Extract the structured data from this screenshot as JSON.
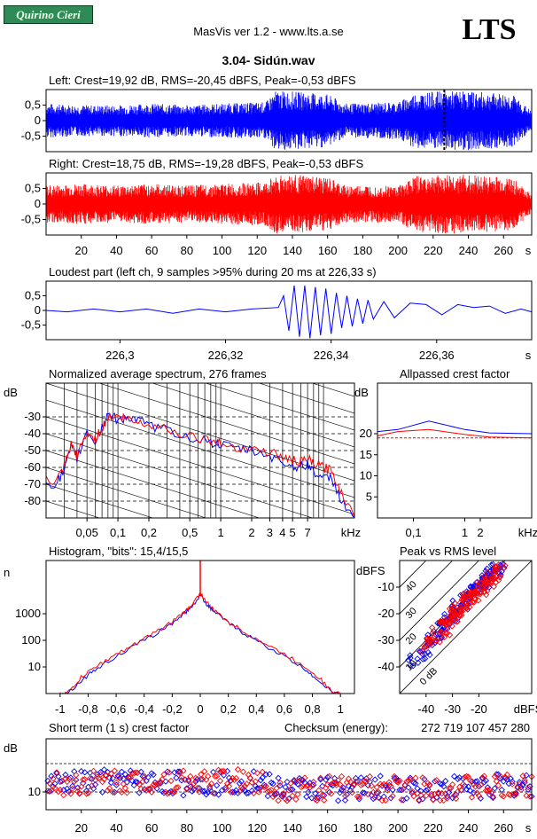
{
  "header": {
    "badge": "Quirino Cieri",
    "software": "MasVis ver 1.2 - www.lts.a.se",
    "brand": "LTS",
    "track": "3.04- Sidún.wav"
  },
  "colors": {
    "left": "#0000ff",
    "right": "#ff0000",
    "grid": "#000000"
  },
  "chart_data": [
    {
      "id": "left",
      "type": "line",
      "title": "Left: Crest=19,92 dB, RMS=-20,45 dBFS, Peak=-0,53 dBFS",
      "xlim": [
        0,
        276
      ],
      "ylim": [
        -1,
        1
      ],
      "yticks": [
        0.5,
        0,
        -0.5
      ],
      "ytick_labels": [
        "0,5",
        "0",
        "-0,5"
      ],
      "marker_x": 226.33,
      "series": [
        {
          "color": "#0000ff",
          "envelope": [
            [
              0,
              0.55
            ],
            [
              20,
              0.5
            ],
            [
              40,
              0.5
            ],
            [
              60,
              0.55
            ],
            [
              80,
              0.5
            ],
            [
              100,
              0.55
            ],
            [
              125,
              0.6
            ],
            [
              130,
              0.95
            ],
            [
              140,
              0.95
            ],
            [
              160,
              0.85
            ],
            [
              170,
              0.55
            ],
            [
              200,
              0.6
            ],
            [
              210,
              0.9
            ],
            [
              226,
              0.95
            ],
            [
              240,
              0.95
            ],
            [
              265,
              0.85
            ],
            [
              276,
              0.3
            ]
          ]
        }
      ]
    },
    {
      "id": "right",
      "type": "line",
      "title": "Right: Crest=18,75 dB, RMS=-19,28 dBFS, Peak=-0,53 dBFS",
      "xlim": [
        0,
        276
      ],
      "ylim": [
        -1,
        1
      ],
      "yticks": [
        0.5,
        0,
        -0.5
      ],
      "ytick_labels": [
        "0,5",
        "0",
        "-0,5"
      ],
      "xticks": [
        20,
        40,
        60,
        80,
        100,
        120,
        140,
        160,
        180,
        200,
        220,
        240,
        260
      ],
      "xtick_labels": [
        "20",
        "40",
        "60",
        "80",
        "100",
        "120",
        "140",
        "160",
        "180",
        "200",
        "220",
        "240",
        "260"
      ],
      "xunit": "s",
      "series": [
        {
          "color": "#ff0000",
          "envelope": [
            [
              0,
              0.6
            ],
            [
              20,
              0.65
            ],
            [
              40,
              0.6
            ],
            [
              60,
              0.65
            ],
            [
              80,
              0.6
            ],
            [
              100,
              0.65
            ],
            [
              125,
              0.7
            ],
            [
              130,
              0.95
            ],
            [
              140,
              0.95
            ],
            [
              160,
              0.85
            ],
            [
              170,
              0.6
            ],
            [
              200,
              0.6
            ],
            [
              210,
              0.9
            ],
            [
              226,
              0.95
            ],
            [
              240,
              0.95
            ],
            [
              265,
              0.85
            ],
            [
              276,
              0.3
            ]
          ]
        }
      ]
    },
    {
      "id": "loudest",
      "type": "line",
      "title": "Loudest part (left  ch, 9 samples >95% during 20 ms at 226,33 s)",
      "xlim": [
        226.286,
        226.378
      ],
      "ylim": [
        -1,
        1
      ],
      "yticks": [
        0.5,
        0,
        -0.5
      ],
      "ytick_labels": [
        "0,5",
        "0",
        "-0,5"
      ],
      "xticks": [
        226.3,
        226.32,
        226.34,
        226.36
      ],
      "xtick_labels": [
        "226,3",
        "226,32",
        "226,34",
        "226,36"
      ],
      "xunit": "s",
      "series": [
        {
          "color": "#0000ff",
          "x": [
            226.286,
            226.29,
            226.295,
            226.3,
            226.305,
            226.31,
            226.315,
            226.32,
            226.325,
            226.33,
            226.331,
            226.332,
            226.333,
            226.334,
            226.335,
            226.336,
            226.337,
            226.338,
            226.339,
            226.34,
            226.341,
            226.342,
            226.343,
            226.344,
            226.345,
            226.346,
            226.347,
            226.348,
            226.35,
            226.352,
            226.355,
            226.358,
            226.361,
            226.364,
            226.367,
            226.37,
            226.373,
            226.376,
            226.378
          ],
          "y": [
            0,
            -0.05,
            0.05,
            -0.05,
            0.05,
            -0.1,
            0.05,
            -0.05,
            0.05,
            0.1,
            0.5,
            -0.7,
            0.85,
            -0.9,
            0.85,
            -0.95,
            0.8,
            -0.85,
            0.75,
            -0.8,
            0.6,
            -0.6,
            0.5,
            -0.55,
            0.4,
            -0.45,
            0.35,
            -0.3,
            0.3,
            -0.25,
            0.25,
            0.2,
            -0.15,
            0.2,
            0.1,
            0.15,
            -0.1,
            0.05,
            -0.05
          ]
        }
      ]
    },
    {
      "id": "spectrum",
      "type": "line",
      "title": "Normalized average spectrum, 276 frames",
      "ylabel": "dB",
      "xscale": "log",
      "xlim": [
        0.02,
        20
      ],
      "ylim": [
        -90,
        -10
      ],
      "yticks": [
        -30,
        -40,
        -50,
        -60,
        -70,
        -80
      ],
      "ytick_labels": [
        "-30",
        "-40",
        "-50",
        "-60",
        "-70",
        "-80"
      ],
      "xticks": [
        0.05,
        0.1,
        0.2,
        0.5,
        1,
        2,
        3,
        4,
        5,
        7
      ],
      "xtick_labels": [
        "0,05",
        "0,1",
        "0,2",
        "0,5",
        "1",
        "2",
        "3",
        "4",
        "5",
        "7"
      ],
      "xunit": "kHz",
      "series": [
        {
          "color": "#0000ff",
          "x": [
            0.02,
            0.025,
            0.03,
            0.035,
            0.04,
            0.05,
            0.06,
            0.07,
            0.08,
            0.1,
            0.12,
            0.15,
            0.2,
            0.3,
            0.5,
            0.8,
            1,
            1.5,
            2,
            3,
            4,
            5,
            6,
            7,
            8,
            10,
            12,
            15,
            20
          ],
          "y": [
            -69,
            -70,
            -62,
            -48,
            -55,
            -38,
            -45,
            -36,
            -28,
            -32,
            -30,
            -32,
            -35,
            -38,
            -42,
            -45,
            -47,
            -49,
            -50,
            -53,
            -57,
            -59,
            -60,
            -58,
            -62,
            -67,
            -66,
            -80,
            -90
          ]
        },
        {
          "color": "#ff0000",
          "x": [
            0.02,
            0.025,
            0.03,
            0.035,
            0.04,
            0.05,
            0.06,
            0.07,
            0.08,
            0.1,
            0.12,
            0.15,
            0.2,
            0.3,
            0.5,
            0.8,
            1,
            1.5,
            2,
            3,
            4,
            5,
            6,
            7,
            8,
            10,
            12,
            15,
            20
          ],
          "y": [
            -68,
            -69,
            -60,
            -47,
            -53,
            -40,
            -43,
            -37,
            -30,
            -30,
            -31,
            -33,
            -34,
            -37,
            -41,
            -44,
            -46,
            -48,
            -49,
            -51,
            -54,
            -56,
            -57,
            -55,
            -58,
            -60,
            -62,
            -75,
            -90
          ]
        }
      ]
    },
    {
      "id": "allpassed",
      "type": "line",
      "title": "Allpassed crest factor",
      "ylabel": "dB",
      "xscale": "log",
      "xlim": [
        0.02,
        20
      ],
      "ylim": [
        0,
        32
      ],
      "yticks": [
        20,
        15,
        10,
        5
      ],
      "ytick_labels": [
        "20",
        "15",
        "10",
        "5"
      ],
      "xticks": [
        0.1,
        1,
        2
      ],
      "xtick_labels": [
        "0,1",
        "1",
        "2"
      ],
      "xunit": "kHz",
      "reference_line": 19,
      "series": [
        {
          "color": "#0000ff",
          "x": [
            0.02,
            0.05,
            0.2,
            1,
            3,
            20
          ],
          "y": [
            20.5,
            21,
            23,
            21,
            20.2,
            20
          ]
        },
        {
          "color": "#ff0000",
          "x": [
            0.02,
            0.05,
            0.2,
            1,
            3,
            20
          ],
          "y": [
            19.5,
            20.5,
            21,
            19.8,
            19.2,
            19
          ]
        }
      ]
    },
    {
      "id": "histogram",
      "type": "line",
      "title": "Histogram, \"bits\": 15,4/15,5",
      "ylabel": "n",
      "yscale": "log",
      "xlim": [
        -1.1,
        1.1
      ],
      "ylim": [
        1,
        100000
      ],
      "yticks": [
        1000,
        100,
        10
      ],
      "ytick_labels": [
        "1000",
        "100",
        "10"
      ],
      "xticks": [
        -1,
        -0.8,
        -0.6,
        -0.4,
        -0.2,
        0,
        0.2,
        0.4,
        0.6,
        0.8,
        1
      ],
      "xtick_labels": [
        "-1",
        "-0,8",
        "-0,6",
        "-0,4",
        "-0,2",
        "0",
        "0,2",
        "0,4",
        "0,6",
        "0,8",
        "1"
      ],
      "series": [
        {
          "color": "#0000ff",
          "x": [
            -1,
            -0.95,
            -0.85,
            -0.75,
            -0.6,
            -0.45,
            -0.3,
            -0.2,
            -0.1,
            -0.05,
            0,
            0.05,
            0.1,
            0.2,
            0.3,
            0.45,
            0.6,
            0.75,
            0.85,
            0.95,
            1
          ],
          "y": [
            1,
            1,
            3,
            8,
            25,
            70,
            200,
            450,
            1200,
            2200,
            5000,
            2200,
            1200,
            450,
            200,
            70,
            25,
            8,
            3,
            1,
            1
          ]
        },
        {
          "color": "#ff0000",
          "x": [
            -1,
            -0.95,
            -0.85,
            -0.75,
            -0.6,
            -0.45,
            -0.3,
            -0.2,
            -0.1,
            -0.05,
            0,
            0.05,
            0.1,
            0.2,
            0.3,
            0.45,
            0.6,
            0.75,
            0.85,
            0.95,
            1
          ],
          "y": [
            1,
            1,
            4,
            10,
            30,
            80,
            230,
            500,
            1300,
            2500,
            6000,
            2500,
            1300,
            500,
            230,
            80,
            30,
            10,
            4,
            1,
            1
          ]
        }
      ]
    },
    {
      "id": "peakrms",
      "type": "scatter",
      "title": "Peak vs RMS level",
      "ylabel": "dBFS",
      "xlim": [
        -50,
        0
      ],
      "ylim": [
        -50,
        0
      ],
      "yticks": [
        -10,
        -20,
        -30,
        -40
      ],
      "ytick_labels": [
        "-10",
        "-20",
        "-30",
        "-40"
      ],
      "xticks": [
        -40,
        -30,
        -20
      ],
      "xtick_labels": [
        "-40",
        "-30",
        "-20"
      ],
      "xunit": "dBFS",
      "crest_labels": [
        "40",
        "30",
        "20",
        "10",
        "0 dB"
      ],
      "series": [
        {
          "color": "#0000ff",
          "x": [
            -45,
            -42,
            -40,
            -38,
            -36,
            -35,
            -34,
            -33,
            -32,
            -31,
            -30,
            -29,
            -28,
            -27,
            -26,
            -25,
            -24,
            -23,
            -22,
            -21,
            -20,
            -19,
            -18,
            -17,
            -16,
            -15,
            -14,
            -13,
            -12
          ],
          "y": [
            -38,
            -35,
            -33,
            -30,
            -28,
            -26,
            -25,
            -24,
            -22,
            -21,
            -22,
            -19,
            -18,
            -17,
            -16,
            -14,
            -14,
            -12,
            -12,
            -10,
            -10,
            -9,
            -8,
            -7,
            -6,
            -5,
            -4,
            -3,
            -2
          ]
        },
        {
          "color": "#ff0000",
          "x": [
            -40,
            -38,
            -36,
            -34,
            -33,
            -32,
            -31,
            -30,
            -29,
            -28,
            -27,
            -26,
            -25,
            -24,
            -23,
            -22,
            -21,
            -20,
            -19,
            -18,
            -17,
            -16,
            -15,
            -14,
            -13,
            -12
          ],
          "y": [
            -32,
            -30,
            -28,
            -26,
            -25,
            -23,
            -22,
            -21,
            -20,
            -19,
            -18,
            -17,
            -16,
            -15,
            -14,
            -13,
            -12,
            -11,
            -10,
            -9,
            -8,
            -7,
            -6,
            -5,
            -4,
            -3
          ]
        }
      ]
    },
    {
      "id": "shortcrest",
      "type": "scatter",
      "title": "Short term (1 s) crest factor",
      "ylabel": "dB",
      "xlim": [
        0,
        276
      ],
      "ylim": [
        5,
        25
      ],
      "yticks": [
        10
      ],
      "ytick_labels": [
        "10"
      ],
      "reference_lines": [
        10,
        18
      ],
      "xticks": [
        20,
        40,
        60,
        80,
        100,
        120,
        140,
        160,
        180,
        200,
        220,
        240,
        260
      ],
      "xtick_labels": [
        "20",
        "40",
        "60",
        "80",
        "100",
        "120",
        "140",
        "160",
        "180",
        "200",
        "220",
        "240",
        "260"
      ],
      "xunit": "s",
      "checksum_label": "Checksum (energy):",
      "checksum_value": "272 719 107 457 280",
      "series": [
        {
          "color": "#0000ff",
          "profile": [
            [
              0,
              12
            ],
            [
              40,
              13
            ],
            [
              80,
              12.5
            ],
            [
              120,
              13
            ],
            [
              130,
              11
            ],
            [
              200,
              11
            ],
            [
              210,
              11
            ],
            [
              276,
              12
            ]
          ]
        },
        {
          "color": "#ff0000",
          "profile": [
            [
              0,
              12
            ],
            [
              40,
              13
            ],
            [
              80,
              13
            ],
            [
              120,
              13
            ],
            [
              130,
              11
            ],
            [
              200,
              11
            ],
            [
              210,
              11
            ],
            [
              276,
              11.5
            ]
          ]
        }
      ]
    }
  ]
}
